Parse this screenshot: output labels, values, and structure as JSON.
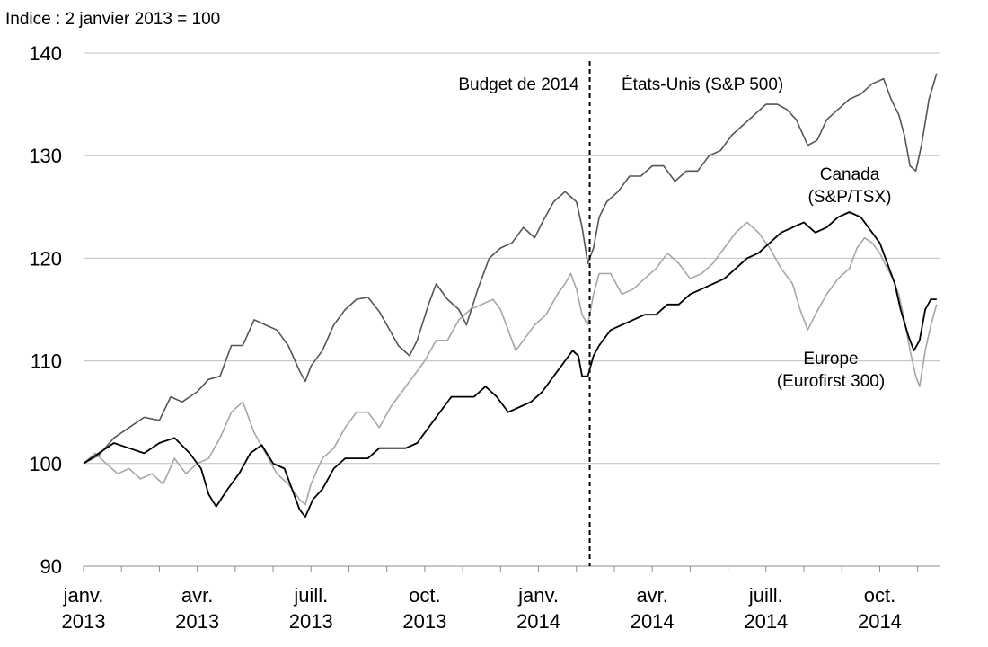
{
  "chart_data": {
    "type": "line",
    "title": "",
    "subtitle": "Indice : 2 janvier 2013 = 100",
    "xlabel": "",
    "ylabel": "",
    "ylim": [
      90,
      140
    ],
    "yticks": [
      90,
      100,
      110,
      120,
      130,
      140
    ],
    "grid": true,
    "x_ticks": [
      {
        "month": 0,
        "line1": "janv.",
        "line2": "2013"
      },
      {
        "month": 3,
        "line1": "avr.",
        "line2": "2013"
      },
      {
        "month": 6,
        "line1": "juill.",
        "line2": "2013"
      },
      {
        "month": 9,
        "line1": "oct.",
        "line2": "2013"
      },
      {
        "month": 12,
        "line1": "janv.",
        "line2": "2014"
      },
      {
        "month": 15,
        "line1": "avr.",
        "line2": "2014"
      },
      {
        "month": 18,
        "line1": "juill.",
        "line2": "2014"
      },
      {
        "month": 21,
        "line1": "oct.",
        "line2": "2014"
      }
    ],
    "x_range_months": [
      0,
      22.6
    ],
    "vline": {
      "month": 13.35,
      "label": "Budget de 2014"
    },
    "annotations": [
      {
        "series": "us",
        "lines": [
          "États-Unis (S&P  500)"
        ]
      },
      {
        "series": "canada",
        "lines": [
          "Canada",
          "(S&P/TSX)"
        ]
      },
      {
        "series": "europe",
        "lines": [
          "Europe",
          "(Eurofirst 300)"
        ]
      }
    ],
    "series": [
      {
        "key": "us",
        "name": "États-Unis (S&P 500)",
        "color": "#555555",
        "points": [
          [
            0,
            100
          ],
          [
            0.4,
            100.8
          ],
          [
            0.8,
            102.5
          ],
          [
            1.2,
            103.5
          ],
          [
            1.6,
            104.5
          ],
          [
            2.0,
            104.2
          ],
          [
            2.3,
            106.5
          ],
          [
            2.6,
            106.0
          ],
          [
            3.0,
            107.0
          ],
          [
            3.3,
            108.2
          ],
          [
            3.6,
            108.5
          ],
          [
            3.9,
            111.5
          ],
          [
            4.2,
            111.5
          ],
          [
            4.5,
            114.0
          ],
          [
            4.8,
            113.5
          ],
          [
            5.1,
            113.0
          ],
          [
            5.4,
            111.5
          ],
          [
            5.7,
            109.0
          ],
          [
            5.85,
            108.0
          ],
          [
            6.0,
            109.5
          ],
          [
            6.3,
            111.0
          ],
          [
            6.6,
            113.5
          ],
          [
            6.9,
            115.0
          ],
          [
            7.2,
            116.0
          ],
          [
            7.5,
            116.2
          ],
          [
            7.8,
            114.8
          ],
          [
            8.0,
            113.5
          ],
          [
            8.3,
            111.5
          ],
          [
            8.6,
            110.5
          ],
          [
            8.8,
            112.0
          ],
          [
            9.1,
            115.5
          ],
          [
            9.3,
            117.5
          ],
          [
            9.6,
            116.0
          ],
          [
            9.9,
            115.0
          ],
          [
            10.1,
            113.5
          ],
          [
            10.4,
            117.0
          ],
          [
            10.7,
            120.0
          ],
          [
            11.0,
            121.0
          ],
          [
            11.3,
            121.5
          ],
          [
            11.6,
            123.0
          ],
          [
            11.9,
            122.0
          ],
          [
            12.1,
            123.5
          ],
          [
            12.4,
            125.5
          ],
          [
            12.7,
            126.5
          ],
          [
            13.0,
            125.5
          ],
          [
            13.15,
            123.0
          ],
          [
            13.3,
            119.5
          ],
          [
            13.45,
            121.0
          ],
          [
            13.6,
            124.0
          ],
          [
            13.8,
            125.5
          ],
          [
            14.1,
            126.5
          ],
          [
            14.4,
            128.0
          ],
          [
            14.7,
            128.0
          ],
          [
            15.0,
            129.0
          ],
          [
            15.3,
            129.0
          ],
          [
            15.6,
            127.5
          ],
          [
            15.9,
            128.5
          ],
          [
            16.2,
            128.5
          ],
          [
            16.5,
            130.0
          ],
          [
            16.8,
            130.5
          ],
          [
            17.1,
            132.0
          ],
          [
            17.4,
            133.0
          ],
          [
            17.7,
            134.0
          ],
          [
            18.0,
            135.0
          ],
          [
            18.3,
            135.0
          ],
          [
            18.55,
            134.5
          ],
          [
            18.8,
            133.5
          ],
          [
            19.1,
            131.0
          ],
          [
            19.35,
            131.5
          ],
          [
            19.6,
            133.5
          ],
          [
            19.9,
            134.5
          ],
          [
            20.2,
            135.5
          ],
          [
            20.5,
            136.0
          ],
          [
            20.8,
            137.0
          ],
          [
            21.1,
            137.5
          ],
          [
            21.3,
            135.5
          ],
          [
            21.5,
            134.0
          ],
          [
            21.65,
            132.0
          ],
          [
            21.8,
            129.0
          ],
          [
            21.95,
            128.5
          ],
          [
            22.1,
            131.0
          ],
          [
            22.3,
            135.5
          ],
          [
            22.5,
            138.0
          ]
        ]
      },
      {
        "key": "canada",
        "name": "Canada (S&P/TSX)",
        "color": "#000000",
        "points": [
          [
            0,
            100
          ],
          [
            0.4,
            101.0
          ],
          [
            0.8,
            102.0
          ],
          [
            1.2,
            101.5
          ],
          [
            1.6,
            101.0
          ],
          [
            2.0,
            102.0
          ],
          [
            2.4,
            102.5
          ],
          [
            2.8,
            101.0
          ],
          [
            3.1,
            99.5
          ],
          [
            3.3,
            97.0
          ],
          [
            3.5,
            95.8
          ],
          [
            3.8,
            97.5
          ],
          [
            4.1,
            99.0
          ],
          [
            4.4,
            101.0
          ],
          [
            4.7,
            101.8
          ],
          [
            5.0,
            100.0
          ],
          [
            5.3,
            99.5
          ],
          [
            5.5,
            97.5
          ],
          [
            5.7,
            95.5
          ],
          [
            5.85,
            94.8
          ],
          [
            6.05,
            96.5
          ],
          [
            6.3,
            97.5
          ],
          [
            6.6,
            99.5
          ],
          [
            6.9,
            100.5
          ],
          [
            7.2,
            100.5
          ],
          [
            7.5,
            100.5
          ],
          [
            7.8,
            101.5
          ],
          [
            8.1,
            101.5
          ],
          [
            8.5,
            101.5
          ],
          [
            8.8,
            102.0
          ],
          [
            9.1,
            103.5
          ],
          [
            9.4,
            105.0
          ],
          [
            9.7,
            106.5
          ],
          [
            10.0,
            106.5
          ],
          [
            10.3,
            106.5
          ],
          [
            10.6,
            107.5
          ],
          [
            10.9,
            106.5
          ],
          [
            11.2,
            105.0
          ],
          [
            11.5,
            105.5
          ],
          [
            11.8,
            106.0
          ],
          [
            12.1,
            107.0
          ],
          [
            12.4,
            108.5
          ],
          [
            12.7,
            110.0
          ],
          [
            12.9,
            111.0
          ],
          [
            13.05,
            110.5
          ],
          [
            13.15,
            108.5
          ],
          [
            13.3,
            108.5
          ],
          [
            13.45,
            110.5
          ],
          [
            13.6,
            111.5
          ],
          [
            13.9,
            113.0
          ],
          [
            14.2,
            113.5
          ],
          [
            14.5,
            114.0
          ],
          [
            14.8,
            114.5
          ],
          [
            15.1,
            114.5
          ],
          [
            15.4,
            115.5
          ],
          [
            15.7,
            115.5
          ],
          [
            16.0,
            116.5
          ],
          [
            16.3,
            117.0
          ],
          [
            16.6,
            117.5
          ],
          [
            16.9,
            118.0
          ],
          [
            17.2,
            119.0
          ],
          [
            17.5,
            120.0
          ],
          [
            17.8,
            120.5
          ],
          [
            18.1,
            121.5
          ],
          [
            18.4,
            122.5
          ],
          [
            18.7,
            123.0
          ],
          [
            19.0,
            123.5
          ],
          [
            19.3,
            122.5
          ],
          [
            19.6,
            123.0
          ],
          [
            19.9,
            124.0
          ],
          [
            20.2,
            124.5
          ],
          [
            20.5,
            124.0
          ],
          [
            20.8,
            122.5
          ],
          [
            21.0,
            121.5
          ],
          [
            21.2,
            119.5
          ],
          [
            21.4,
            117.5
          ],
          [
            21.55,
            115.0
          ],
          [
            21.75,
            112.5
          ],
          [
            21.9,
            111.0
          ],
          [
            22.05,
            112.0
          ],
          [
            22.2,
            115.0
          ],
          [
            22.35,
            116.0
          ],
          [
            22.5,
            116.0
          ]
        ]
      },
      {
        "key": "europe",
        "name": "Europe (Eurofirst 300)",
        "color": "#a6a6a6",
        "points": [
          [
            0,
            100
          ],
          [
            0.3,
            101.0
          ],
          [
            0.6,
            100.0
          ],
          [
            0.9,
            99.0
          ],
          [
            1.2,
            99.5
          ],
          [
            1.5,
            98.5
          ],
          [
            1.8,
            99.0
          ],
          [
            2.1,
            98.0
          ],
          [
            2.4,
            100.5
          ],
          [
            2.7,
            99.0
          ],
          [
            3.0,
            100.0
          ],
          [
            3.3,
            100.5
          ],
          [
            3.6,
            102.5
          ],
          [
            3.9,
            105.0
          ],
          [
            4.2,
            106.0
          ],
          [
            4.5,
            103.0
          ],
          [
            4.8,
            101.0
          ],
          [
            5.1,
            99.0
          ],
          [
            5.4,
            98.0
          ],
          [
            5.7,
            96.5
          ],
          [
            5.85,
            96.0
          ],
          [
            6.0,
            98.0
          ],
          [
            6.3,
            100.5
          ],
          [
            6.6,
            101.5
          ],
          [
            6.9,
            103.5
          ],
          [
            7.2,
            105.0
          ],
          [
            7.5,
            105.0
          ],
          [
            7.8,
            103.5
          ],
          [
            8.1,
            105.5
          ],
          [
            8.4,
            107.0
          ],
          [
            8.7,
            108.5
          ],
          [
            9.0,
            110.0
          ],
          [
            9.3,
            112.0
          ],
          [
            9.6,
            112.0
          ],
          [
            9.9,
            114.0
          ],
          [
            10.2,
            115.0
          ],
          [
            10.5,
            115.5
          ],
          [
            10.8,
            116.0
          ],
          [
            11.0,
            115.0
          ],
          [
            11.2,
            113.0
          ],
          [
            11.4,
            111.0
          ],
          [
            11.6,
            112.0
          ],
          [
            11.9,
            113.5
          ],
          [
            12.2,
            114.5
          ],
          [
            12.5,
            116.5
          ],
          [
            12.7,
            117.5
          ],
          [
            12.85,
            118.5
          ],
          [
            13.0,
            117.0
          ],
          [
            13.15,
            114.5
          ],
          [
            13.3,
            113.5
          ],
          [
            13.45,
            116.5
          ],
          [
            13.6,
            118.5
          ],
          [
            13.9,
            118.5
          ],
          [
            14.2,
            116.5
          ],
          [
            14.5,
            117.0
          ],
          [
            14.8,
            118.0
          ],
          [
            15.1,
            119.0
          ],
          [
            15.4,
            120.5
          ],
          [
            15.7,
            119.5
          ],
          [
            16.0,
            118.0
          ],
          [
            16.3,
            118.5
          ],
          [
            16.6,
            119.5
          ],
          [
            16.9,
            121.0
          ],
          [
            17.2,
            122.5
          ],
          [
            17.5,
            123.5
          ],
          [
            17.8,
            122.5
          ],
          [
            18.1,
            121.0
          ],
          [
            18.4,
            119.0
          ],
          [
            18.7,
            117.5
          ],
          [
            18.9,
            115.0
          ],
          [
            19.1,
            113.0
          ],
          [
            19.3,
            114.5
          ],
          [
            19.6,
            116.5
          ],
          [
            19.9,
            118.0
          ],
          [
            20.2,
            119.0
          ],
          [
            20.4,
            121.0
          ],
          [
            20.6,
            122.0
          ],
          [
            20.8,
            121.5
          ],
          [
            21.0,
            120.5
          ],
          [
            21.2,
            119.0
          ],
          [
            21.35,
            118.0
          ],
          [
            21.5,
            116.5
          ],
          [
            21.65,
            114.0
          ],
          [
            21.8,
            111.0
          ],
          [
            21.95,
            108.5
          ],
          [
            22.05,
            107.5
          ],
          [
            22.2,
            111.0
          ],
          [
            22.35,
            113.5
          ],
          [
            22.5,
            115.5
          ]
        ]
      }
    ]
  }
}
